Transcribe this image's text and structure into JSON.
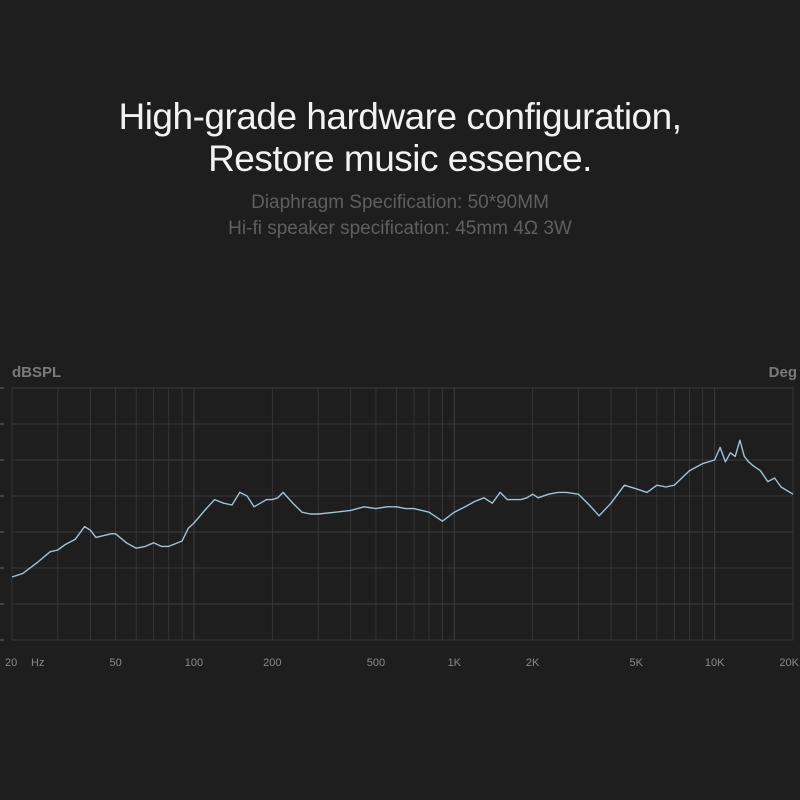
{
  "header": {
    "title_line1": "High-grade hardware configuration,",
    "title_line2": "Restore music essence.",
    "spec_line1": "Diaphragm Specification: 50*90MM",
    "spec_line2": "Hi-fi speaker specification: 45mm 4Ω  3W"
  },
  "colors": {
    "background": "#1e1e1f",
    "curve": "#9ec4d6",
    "grid": "#3a3a3c"
  },
  "chart_data": {
    "type": "line",
    "title": "",
    "xlabel": "",
    "ylabel": "dBSPL",
    "y2label": "Deg",
    "x_scale": "log",
    "xlim": [
      20,
      20000
    ],
    "ylim": [
      0,
      7
    ],
    "grid": true,
    "x_ticks": [
      {
        "value": 20,
        "label": "20"
      },
      {
        "value": 50,
        "label": "50"
      },
      {
        "value": 100,
        "label": "100"
      },
      {
        "value": 200,
        "label": "200"
      },
      {
        "value": 500,
        "label": "500"
      },
      {
        "value": 1000,
        "label": "1K"
      },
      {
        "value": 2000,
        "label": "2K"
      },
      {
        "value": 5000,
        "label": "5K"
      },
      {
        "value": 10000,
        "label": "10K"
      },
      {
        "value": 20000,
        "label": "20K"
      }
    ],
    "x_unit": "Hz",
    "series": [
      {
        "x": [
          20,
          22,
          25,
          28,
          30,
          32,
          35,
          38,
          40,
          42,
          45,
          48,
          50,
          55,
          60,
          65,
          70,
          75,
          80,
          90,
          95,
          100,
          110,
          120,
          130,
          140,
          150,
          160,
          170,
          180,
          190,
          200,
          210,
          220,
          240,
          260,
          280,
          300,
          350,
          400,
          450,
          500,
          550,
          600,
          650,
          700,
          800,
          900,
          1000,
          1100,
          1200,
          1300,
          1400,
          1500,
          1600,
          1700,
          1800,
          1900,
          2000,
          2100,
          2300,
          2500,
          2700,
          3000,
          3300,
          3600,
          4000,
          4500,
          5000,
          5500,
          6000,
          6500,
          7000,
          8000,
          9000,
          10000,
          10500,
          11000,
          11500,
          12000,
          12500,
          13000,
          13500,
          14000,
          15000,
          16000,
          17000,
          18000,
          20000
        ],
        "y": [
          1.75,
          1.85,
          2.15,
          2.45,
          2.5,
          2.65,
          2.8,
          3.15,
          3.05,
          2.85,
          2.9,
          2.95,
          2.95,
          2.7,
          2.55,
          2.6,
          2.7,
          2.6,
          2.6,
          2.75,
          3.1,
          3.25,
          3.6,
          3.9,
          3.8,
          3.75,
          4.1,
          4.0,
          3.7,
          3.8,
          3.9,
          3.9,
          3.95,
          4.1,
          3.8,
          3.55,
          3.5,
          3.5,
          3.55,
          3.6,
          3.7,
          3.65,
          3.7,
          3.7,
          3.65,
          3.65,
          3.55,
          3.3,
          3.55,
          3.7,
          3.85,
          3.95,
          3.8,
          4.1,
          3.9,
          3.9,
          3.9,
          3.95,
          4.05,
          3.95,
          4.05,
          4.1,
          4.1,
          4.05,
          3.75,
          3.45,
          3.8,
          4.3,
          4.2,
          4.1,
          4.3,
          4.25,
          4.3,
          4.7,
          4.9,
          5.0,
          5.35,
          4.95,
          5.2,
          5.1,
          5.55,
          5.1,
          4.95,
          4.85,
          4.7,
          4.4,
          4.5,
          4.25,
          4.05
        ]
      }
    ]
  }
}
